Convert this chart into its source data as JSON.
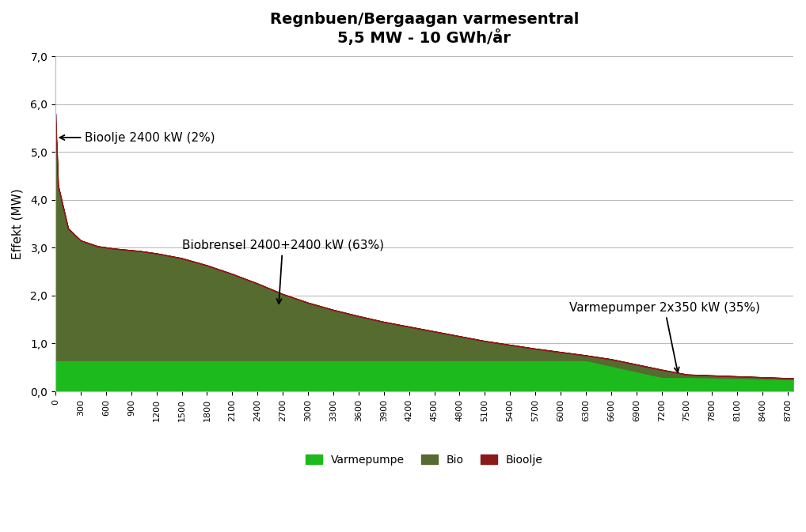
{
  "title_line1": "Regnbuen/Bergaagan varmesentral",
  "title_line2": "5,5 MW - 10 GWh/år",
  "ylabel": "Effekt (MW)",
  "ylim": [
    0,
    7.0
  ],
  "yticks": [
    0.0,
    1.0,
    2.0,
    3.0,
    4.0,
    5.0,
    6.0,
    7.0
  ],
  "ytick_labels": [
    "0,0",
    "1,0",
    "2,0",
    "3,0",
    "4,0",
    "5,0",
    "6,0",
    "7,0"
  ],
  "xlim": [
    0,
    8760
  ],
  "xtick_positions": [
    0,
    300,
    600,
    900,
    1200,
    1500,
    1800,
    2100,
    2400,
    2700,
    3000,
    3300,
    3600,
    3900,
    4200,
    4500,
    4800,
    5100,
    5400,
    5700,
    6000,
    6300,
    6600,
    6900,
    7200,
    7500,
    7800,
    8100,
    8400,
    8700
  ],
  "color_varmepumpe": "#1dba1d",
  "color_bio": "#556b2f",
  "color_bioolje_area": "#8b1a1a",
  "bg_color": "#ffffff",
  "annotation_bioolje": "Bioolje 2400 kW (2%)",
  "annotation_bio": "Biobrensel 2400+2400 kW (63%)",
  "annotation_varme": "Varmepumper 2x350 kW (35%)",
  "legend_labels": [
    "Varmepumpe",
    "Bio",
    "Bioolje"
  ]
}
